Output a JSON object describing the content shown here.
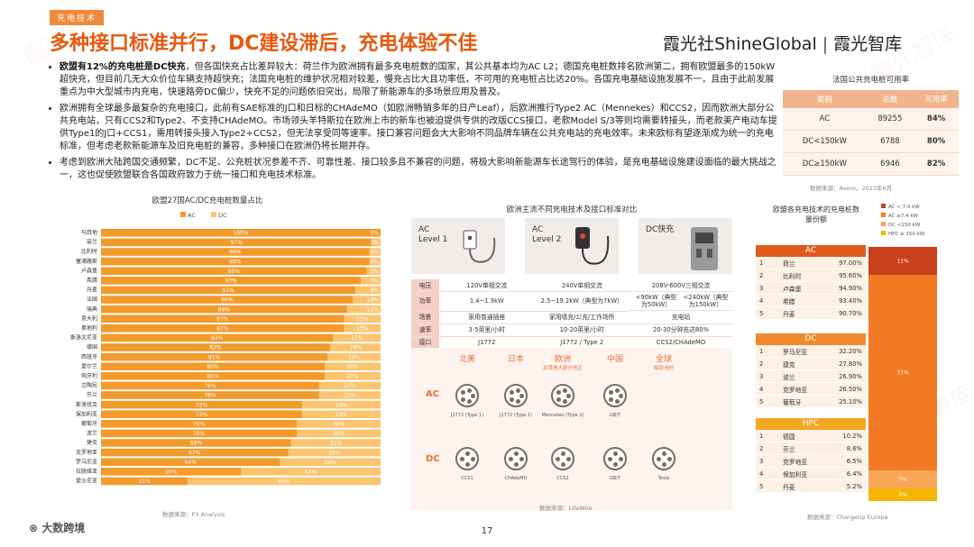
{
  "header": {
    "tag": "充电技术",
    "title": "多种接口标准并行，DC建设滞后，充电体验不佳",
    "logo": "霞光社ShineGlobal",
    "logo2": "霞光智库"
  },
  "watermark": "霞光智库",
  "bullets": [
    {
      "bold": "欧盟有12%的充电桩是DC快充",
      "text": "，但各国快充占比差异较大：荷兰作为欧洲拥有最多充电桩数的国家，其公共基本均为AC L2；德国充电桩数排名欧洲第二，拥有欧盟最多的150kW超快充，但目前几无大众价位车辆支持超快充；法国充电桩的维护状况相对较差，慢充占比大且功率低，不可用的充电桩占比达20%。各国充电基础设施发展不一，且由于此前发展重点为中大型城市内充电，快速路旁DC偏少，快充不足的问题依旧突出，局限了新能源车的多场景应用及普及。"
    },
    {
      "text": "欧洲拥有全球最多最复杂的充电接口，此前有SAE标准的J口和日标的CHAdeMO（如欧洲畅销多年的日产Leaf），后欧洲推行Type2 AC（Mennekes）和CCS2，因而欧洲大部分公共充电站，只有CCS2和Type2、不支持CHAdeMO。市场领头羊特斯拉在欧洲上市的新车也被迫提供专供的改版CCS接口，老款Model S/3等则均需要转接头，而老款美产电动车提供Type1的J口+CCS1，需用转接头接入Type2+CCS2，但无法享受同等速率。接口兼容问题会大大影响不同品牌车辆在公共充电站的充电效率。未来欧标有望逐渐成为统一的充电标准，但考虑老款新能源车及旧充电桩的兼容，多种接口在欧洲仍将长期并存。"
    },
    {
      "text": "考虑到欧洲大陆跨国交通频繁，DC不足、公充桩状况参差不齐、可靠性差、接口较多且不兼容的问题，将极大影响新能源车长途驾行的体验，是充电基础设施建设面临的最大挑战之一，这也促使欧盟联合各国政府致力于统一接口和充电技术标准。"
    }
  ],
  "france_table": {
    "title": "法国公共充电桩可用率",
    "header": [
      "类别",
      "总数",
      "可用率"
    ],
    "rows": [
      [
        "AC",
        "89255",
        "84%"
      ],
      [
        "DC<150kW",
        "6788",
        "80%"
      ],
      [
        "DC≥150kW",
        "6946",
        "82%"
      ]
    ],
    "source": "数据来源：Avere，2023年6月"
  },
  "eu_chart": {
    "type": "bar",
    "orientation": "horizontal",
    "stacked": true,
    "title": "欧盟27国AC/DC充电桩数量占比",
    "categories": [
      "马耳他",
      "荷兰",
      "比利时",
      "塞浦路斯",
      "卢森堡",
      "希腊",
      "丹麦",
      "法国",
      "瑞典",
      "意大利",
      "奥地利",
      "斯洛文尼亚",
      "德国",
      "西班牙",
      "爱尔兰",
      "匈牙利",
      "立陶宛",
      "芬兰",
      "斯洛伐克",
      "保加利亚",
      "葡萄牙",
      "波兰",
      "捷克",
      "克罗地亚",
      "罗马尼亚",
      "拉脱维亚",
      "爱沙尼亚"
    ],
    "series": [
      {
        "name": "AC",
        "color": "#f39a2b",
        "values": [
          100,
          97,
          96,
          96,
          95,
          93,
          91,
          90,
          88,
          87,
          87,
          83,
          82,
          81,
          80,
          80,
          78,
          78,
          72,
          72,
          70,
          70,
          68,
          67,
          64,
          50,
          31
        ],
        "value_labels": [
          "100%",
          "97%",
          "96%",
          "96%",
          "95%",
          "93%",
          "91%",
          "90%",
          "88%",
          "87%",
          "87%",
          "83%",
          "82%",
          "81%",
          "80%",
          "80%",
          "78%",
          "78%",
          "72%",
          "72%",
          "70%",
          "70%",
          "68%",
          "67%",
          "64%",
          "50%",
          "31%"
        ]
      },
      {
        "name": "DC",
        "color": "#fcc46e",
        "values": [
          0,
          3,
          4,
          4,
          5,
          7,
          9,
          10,
          12,
          13,
          13,
          17,
          18,
          19,
          20,
          20,
          22,
          22,
          28,
          28,
          30,
          30,
          32,
          33,
          36,
          50,
          69
        ],
        "value_labels": [
          "0%",
          "3%",
          "4%",
          "4%",
          "5%",
          "7%",
          "9%",
          "10%",
          "12%",
          "13%",
          "13%",
          "17%",
          "18%",
          "19%",
          "20%",
          "20%",
          "22%",
          "22%",
          "28%",
          "28%",
          "30%",
          "30%",
          "32%",
          "33%",
          "36%",
          "50%",
          "69%"
        ]
      }
    ],
    "xlim": [
      0,
      100
    ],
    "source": "数据来源：P3 Analysis"
  },
  "tech_table": {
    "title": "欧洲主流不同充电技术及接口标准对比",
    "columns": [
      [
        "AC",
        "Level 1"
      ],
      [
        "AC",
        "Level 2"
      ],
      [
        "DC快充"
      ]
    ],
    "rows": [
      {
        "label": "电压",
        "cells": [
          [
            "120V单相交流"
          ],
          [
            "240V单相交流"
          ],
          [
            "208V-600V三相交流"
          ]
        ]
      },
      {
        "label": "功率",
        "cells": [
          [
            "1.4~1.9kW"
          ],
          [
            "2.5~19.2kW（典型为7kW）"
          ],
          [
            "<90kW（典型为50kW）",
            "<240kW（典型为150kW）"
          ]
        ]
      },
      {
        "label": "场景",
        "cells": [
          [
            "家用普通插座"
          ],
          [
            "家用墙充/公充/工作场所"
          ],
          [
            "充电站"
          ]
        ]
      },
      {
        "label": "速率",
        "cells": [
          [
            "3-5英里/小时"
          ],
          [
            "10-20英里/小时"
          ],
          [
            "20-30分钟充达80%"
          ]
        ]
      },
      {
        "label": "接口",
        "cells": [
          [
            "J1772"
          ],
          [
            "J1772 / Type 2"
          ],
          [
            "CCS2/CHAdeMO"
          ]
        ]
      }
    ]
  },
  "connectors": {
    "regions": [
      {
        "name": "北美"
      },
      {
        "name": "日本"
      },
      {
        "name": "欧洲",
        "sub": "及其他大部分地区"
      },
      {
        "name": "中国"
      },
      {
        "name": "全球",
        "sub": "除欧洲外"
      }
    ],
    "ac_label": "AC",
    "dc_label": "DC",
    "ac": [
      "J1772 (Type 1)",
      "J1772 (Type 1)",
      "Mennekes (Type 2)",
      "GB/T"
    ],
    "dc": [
      "CCS1",
      "CHAdeMO",
      "CCS2",
      "GB/T",
      "Tesla"
    ],
    "source": "数据来源：LifeWire"
  },
  "share": {
    "title": "欧盟各充电技术的充电桩数量份额",
    "groups": [
      {
        "name": "AC",
        "rows": [
          [
            "1",
            "荷兰",
            "97.00%"
          ],
          [
            "2",
            "比利时",
            "95.60%"
          ],
          [
            "3",
            "卢森堡",
            "94.90%"
          ],
          [
            "4",
            "希腊",
            "93.40%"
          ],
          [
            "5",
            "丹麦",
            "90.70%"
          ]
        ]
      },
      {
        "name": "DC",
        "rows": [
          [
            "1",
            "罗马尼亚",
            "32.20%"
          ],
          [
            "2",
            "捷克",
            "27.80%"
          ],
          [
            "3",
            "波兰",
            "26.90%"
          ],
          [
            "4",
            "克罗地亚",
            "26.50%"
          ],
          [
            "5",
            "葡萄牙",
            "25.10%"
          ]
        ]
      },
      {
        "name": "HPC",
        "rows": [
          [
            "1",
            "德国",
            "10.2%"
          ],
          [
            "2",
            "芬兰",
            "8.6%"
          ],
          [
            "3",
            "克罗地亚",
            "6.5%"
          ],
          [
            "4",
            "保加利亚",
            "6.4%"
          ],
          [
            "5",
            "丹麦",
            "5.2%"
          ]
        ]
      }
    ],
    "column": {
      "type": "bar",
      "orientation": "vertical",
      "stacked": true,
      "ylim": [
        0,
        100
      ],
      "series": [
        {
          "name": "HPC ≥ 150 kW",
          "color": "#f7b500",
          "values": [
            5
          ],
          "value_labels": [
            "5%"
          ]
        },
        {
          "name": "DC <150 kW",
          "color": "#f9a657",
          "values": [
            7
          ],
          "value_labels": [
            "7%"
          ]
        },
        {
          "name": "AC ≥7.4 kW",
          "color": "#f27a24",
          "values": [
            77
          ],
          "value_labels": [
            "77%"
          ]
        },
        {
          "name": "AC < 7.4 kW",
          "color": "#c9401b",
          "values": [
            11
          ],
          "value_labels": [
            "11%"
          ]
        }
      ]
    },
    "source": "数据来源：ChargeUp Europe"
  },
  "page_number": "17",
  "footer_mark": "大数跨境"
}
